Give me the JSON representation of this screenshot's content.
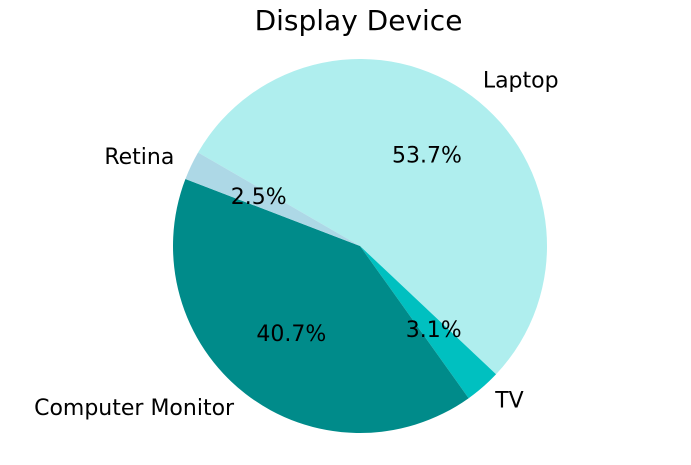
{
  "chart_data": {
    "type": "pie",
    "title": "Display Device",
    "slices": [
      {
        "label": "Laptop",
        "value": 53.7,
        "pct_label": "53.7%",
        "color": "#afeeee"
      },
      {
        "label": "TV",
        "value": 3.1,
        "pct_label": "3.1%",
        "color": "#00c0c0"
      },
      {
        "label": "Computer Monitor",
        "value": 40.7,
        "pct_label": "40.7%",
        "color": "#008b8a"
      },
      {
        "label": "Retina",
        "value": 2.5,
        "pct_label": "2.5%",
        "color": "#add8e6"
      }
    ],
    "start_angle_deg": 150,
    "direction": "clockwise",
    "legend": "none"
  }
}
